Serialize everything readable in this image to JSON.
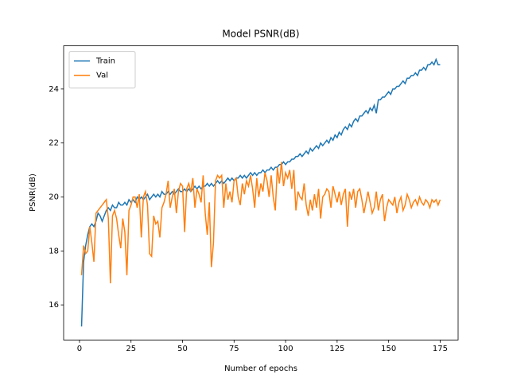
{
  "chart_data": {
    "type": "line",
    "title": "Model PSNR(dB)",
    "x_label": "Number of epochs",
    "y_label": "PSNR(dB)",
    "x": [
      1,
      2,
      3,
      4,
      5,
      6,
      7,
      8,
      9,
      10,
      11,
      12,
      13,
      14,
      15,
      16,
      17,
      18,
      19,
      20,
      21,
      22,
      23,
      24,
      25,
      26,
      27,
      28,
      29,
      30,
      31,
      32,
      33,
      34,
      35,
      36,
      37,
      38,
      39,
      40,
      41,
      42,
      43,
      44,
      45,
      46,
      47,
      48,
      49,
      50,
      51,
      52,
      53,
      54,
      55,
      56,
      57,
      58,
      59,
      60,
      61,
      62,
      63,
      64,
      65,
      66,
      67,
      68,
      69,
      70,
      71,
      72,
      73,
      74,
      75,
      76,
      77,
      78,
      79,
      80,
      81,
      82,
      83,
      84,
      85,
      86,
      87,
      88,
      89,
      90,
      91,
      92,
      93,
      94,
      95,
      96,
      97,
      98,
      99,
      100,
      101,
      102,
      103,
      104,
      105,
      106,
      107,
      108,
      109,
      110,
      111,
      112,
      113,
      114,
      115,
      116,
      117,
      118,
      119,
      120,
      121,
      122,
      123,
      124,
      125,
      126,
      127,
      128,
      129,
      130,
      131,
      132,
      133,
      134,
      135,
      136,
      137,
      138,
      139,
      140,
      141,
      142,
      143,
      144,
      145,
      146,
      147,
      148,
      149,
      150,
      151,
      152,
      153,
      154,
      155,
      156,
      157,
      158,
      159,
      160,
      161,
      162,
      163,
      164,
      165,
      166,
      167,
      168,
      169,
      170,
      171,
      172,
      173,
      174,
      175
    ],
    "series": [
      {
        "name": "Train",
        "color": "#1f77b4",
        "values": [
          15.2,
          17.6,
          18.2,
          18.6,
          18.9,
          19.0,
          18.9,
          19.1,
          19.4,
          19.3,
          19.1,
          19.3,
          19.5,
          19.6,
          19.5,
          19.7,
          19.6,
          19.6,
          19.8,
          19.7,
          19.7,
          19.8,
          19.7,
          19.9,
          19.8,
          19.9,
          19.8,
          20.0,
          19.9,
          20.0,
          19.9,
          20.0,
          20.1,
          19.9,
          20.0,
          20.1,
          20.0,
          20.1,
          20.0,
          20.2,
          20.1,
          20.1,
          20.2,
          20.1,
          20.2,
          20.1,
          20.2,
          20.3,
          20.2,
          20.2,
          20.3,
          20.2,
          20.3,
          20.2,
          20.3,
          20.4,
          20.3,
          20.4,
          20.3,
          20.4,
          20.4,
          20.5,
          20.4,
          20.5,
          20.4,
          20.5,
          20.6,
          20.5,
          20.6,
          20.5,
          20.6,
          20.7,
          20.6,
          20.7,
          20.6,
          20.7,
          20.7,
          20.8,
          20.7,
          20.8,
          20.7,
          20.8,
          20.9,
          20.8,
          20.9,
          20.8,
          20.9,
          20.9,
          21.0,
          20.9,
          21.0,
          21.0,
          21.1,
          21.0,
          21.1,
          21.1,
          21.2,
          21.2,
          21.3,
          21.2,
          21.3,
          21.3,
          21.4,
          21.4,
          21.5,
          21.5,
          21.6,
          21.5,
          21.6,
          21.7,
          21.6,
          21.8,
          21.7,
          21.8,
          21.9,
          21.8,
          22.0,
          21.9,
          22.0,
          22.1,
          22.0,
          22.2,
          22.1,
          22.3,
          22.2,
          22.4,
          22.3,
          22.5,
          22.6,
          22.5,
          22.7,
          22.6,
          22.8,
          22.9,
          22.8,
          23.0,
          23.0,
          23.1,
          23.2,
          23.1,
          23.3,
          23.2,
          23.4,
          23.1,
          23.6,
          23.6,
          23.7,
          23.7,
          23.8,
          23.9,
          23.8,
          24.0,
          24.0,
          24.1,
          24.1,
          24.2,
          24.3,
          24.2,
          24.4,
          24.4,
          24.5,
          24.5,
          24.6,
          24.5,
          24.7,
          24.7,
          24.8,
          24.7,
          24.9,
          24.9,
          25.0,
          24.9,
          25.1,
          24.9,
          24.9
        ]
      },
      {
        "name": "Val",
        "color": "#ff7f0e",
        "values": [
          17.1,
          18.2,
          17.9,
          18.0,
          18.9,
          18.3,
          17.6,
          19.4,
          19.5,
          19.6,
          19.7,
          19.8,
          19.9,
          19.2,
          16.8,
          19.3,
          19.5,
          19.2,
          18.6,
          18.1,
          19.2,
          18.7,
          17.1,
          19.5,
          19.7,
          20.0,
          20.0,
          19.6,
          20.1,
          18.5,
          20.0,
          20.2,
          19.7,
          17.9,
          17.8,
          19.3,
          19.0,
          19.1,
          18.5,
          19.6,
          19.8,
          20.1,
          20.6,
          19.6,
          20.0,
          20.3,
          19.4,
          20.2,
          20.5,
          20.4,
          18.7,
          20.3,
          20.5,
          20.2,
          20.7,
          19.6,
          20.3,
          20.1,
          19.8,
          20.8,
          19.4,
          18.6,
          19.8,
          17.4,
          18.3,
          20.6,
          20.8,
          20.7,
          20.8,
          19.6,
          20.5,
          19.9,
          20.2,
          19.8,
          20.6,
          20.7,
          20.0,
          19.7,
          20.5,
          20.1,
          20.6,
          20.4,
          20.8,
          20.3,
          19.6,
          20.7,
          20.0,
          20.5,
          20.2,
          20.9,
          20.6,
          20.0,
          20.8,
          20.0,
          19.5,
          21.1,
          20.5,
          21.3,
          20.4,
          20.9,
          20.7,
          21.0,
          20.3,
          21.0,
          19.5,
          20.2,
          20.0,
          19.9,
          20.5,
          19.7,
          19.3,
          19.9,
          19.5,
          20.1,
          19.6,
          20.3,
          19.2,
          20.0,
          20.1,
          20.3,
          20.2,
          19.6,
          20.4,
          20.1,
          19.8,
          20.2,
          19.7,
          20.1,
          20.3,
          18.9,
          20.2,
          19.9,
          20.3,
          19.6,
          20.2,
          20.3,
          19.9,
          19.4,
          19.8,
          20.2,
          19.8,
          19.4,
          19.6,
          20.2,
          19.5,
          19.9,
          20.1,
          19.1,
          19.6,
          19.9,
          19.8,
          19.7,
          20.0,
          19.4,
          19.8,
          20.0,
          19.5,
          19.7,
          20.1,
          19.9,
          19.6,
          19.8,
          19.9,
          19.7,
          20.0,
          19.8,
          19.7,
          19.9,
          19.8,
          19.6,
          19.9,
          19.8,
          19.9,
          19.7,
          19.9
        ]
      }
    ],
    "xlim": [
      -7.7,
      183.7
    ],
    "ylim": [
      14.7,
      25.6
    ],
    "xticks": [
      0,
      25,
      50,
      75,
      100,
      125,
      150,
      175
    ],
    "yticks": [
      16,
      18,
      20,
      22,
      24
    ],
    "legend": "upper left"
  }
}
